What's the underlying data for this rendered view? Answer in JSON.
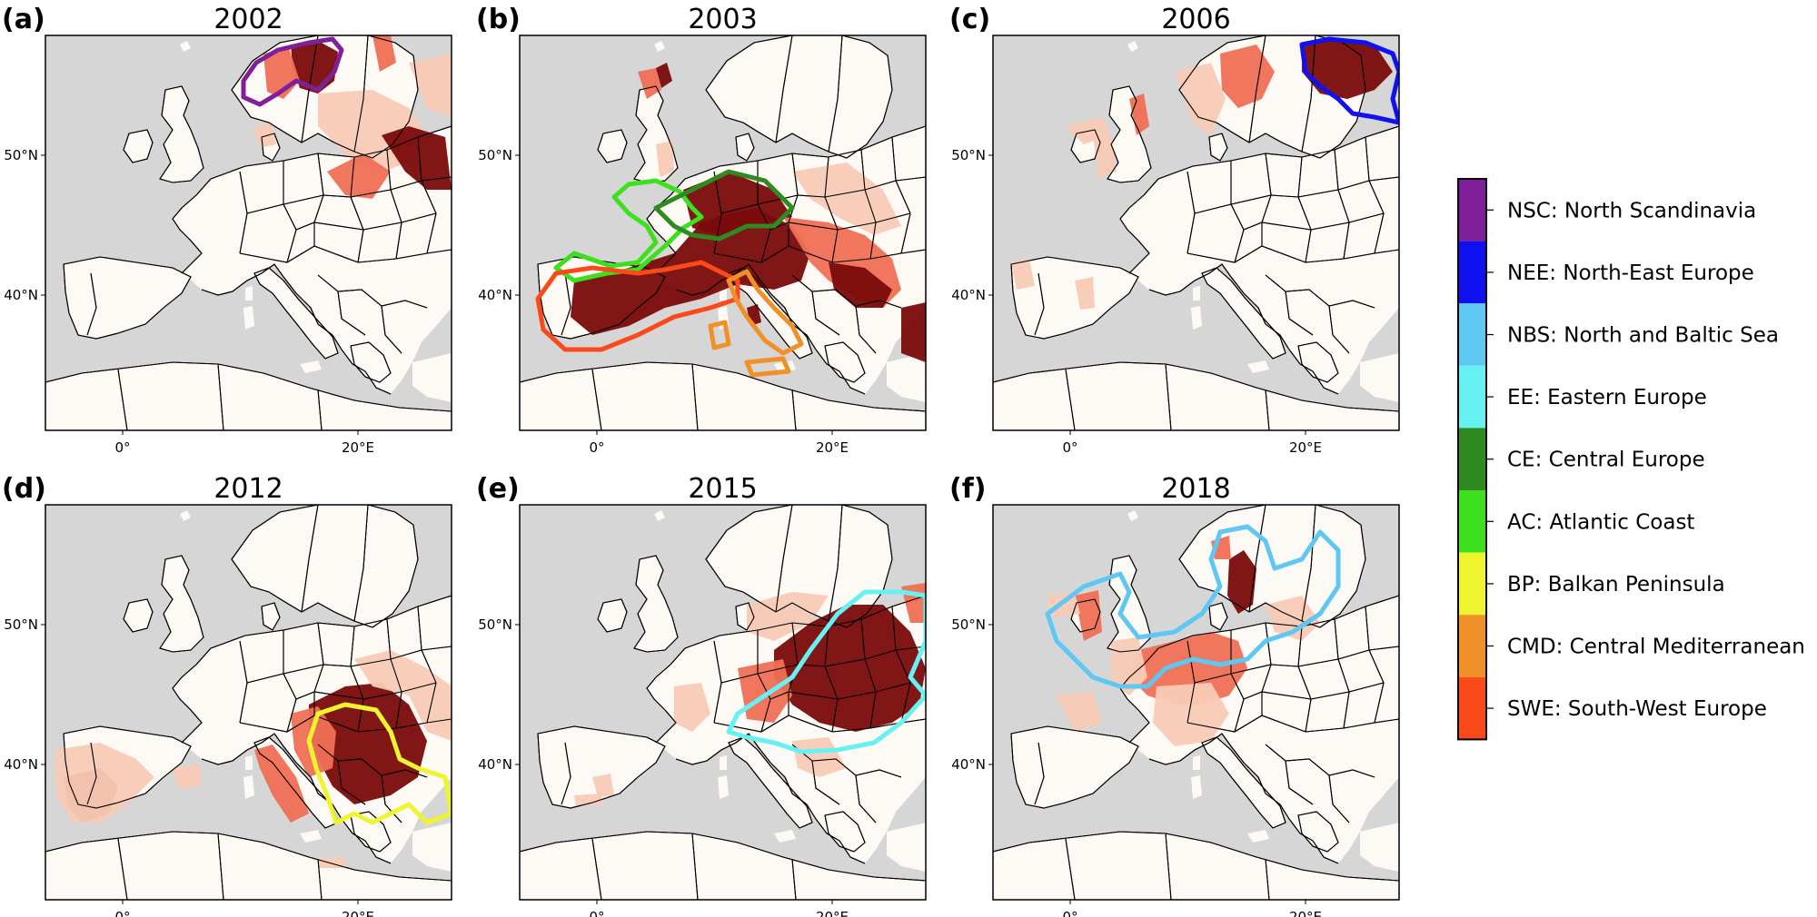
{
  "figure": {
    "panels": [
      {
        "id": "a",
        "label": "(a)",
        "year": "2002",
        "show_lat": true,
        "show_lon": true,
        "highlight_regions": [
          "NSC"
        ]
      },
      {
        "id": "b",
        "label": "(b)",
        "year": "2003",
        "show_lat": true,
        "show_lon": true,
        "highlight_regions": [
          "AC",
          "CE",
          "SWE",
          "CMD"
        ]
      },
      {
        "id": "c",
        "label": "(c)",
        "year": "2006",
        "show_lat": true,
        "show_lon": true,
        "highlight_regions": [
          "NEE"
        ]
      },
      {
        "id": "d",
        "label": "(d)",
        "year": "2012",
        "show_lat": true,
        "show_lon": true,
        "highlight_regions": [
          "BP"
        ]
      },
      {
        "id": "e",
        "label": "(e)",
        "year": "2015",
        "show_lat": true,
        "show_lon": true,
        "highlight_regions": [
          "EE"
        ]
      },
      {
        "id": "f",
        "label": "(f)",
        "year": "2018",
        "show_lat": true,
        "show_lon": true,
        "highlight_regions": [
          "NBS"
        ]
      }
    ],
    "lat_ticks": [
      "50°N",
      "40°N"
    ],
    "lon_ticks": [
      "0°",
      "20°E"
    ],
    "colors": {
      "sea": "#d6d6d6",
      "land": "#fdf9f4",
      "border": "#000000",
      "heat_light": "#f8cbb6",
      "heat_mid": "#ef6f55",
      "heat_dark": "#7a0a0a"
    },
    "legend": [
      {
        "code": "NSC",
        "label": "NSC: North Scandinavia",
        "color": "#7f1f99"
      },
      {
        "code": "NEE",
        "label": "NEE: North-East Europe",
        "color": "#1010f0"
      },
      {
        "code": "NBS",
        "label": "NBS: North and Baltic Sea",
        "color": "#5ec8f2"
      },
      {
        "code": "EE",
        "label": "EE: Eastern Europe",
        "color": "#66f2f2"
      },
      {
        "code": "CE",
        "label": "CE: Central Europe",
        "color": "#2f8a22"
      },
      {
        "code": "AC",
        "label": "AC: Atlantic Coast",
        "color": "#3ee01e"
      },
      {
        "code": "BP",
        "label": "BP: Balkan Peninsula",
        "color": "#eef52e"
      },
      {
        "code": "CMD",
        "label": "CMD: Central Mediterranean",
        "color": "#f09028"
      },
      {
        "code": "SWE",
        "label": "SWE: South-West Europe",
        "color": "#fa4a1a"
      }
    ]
  }
}
